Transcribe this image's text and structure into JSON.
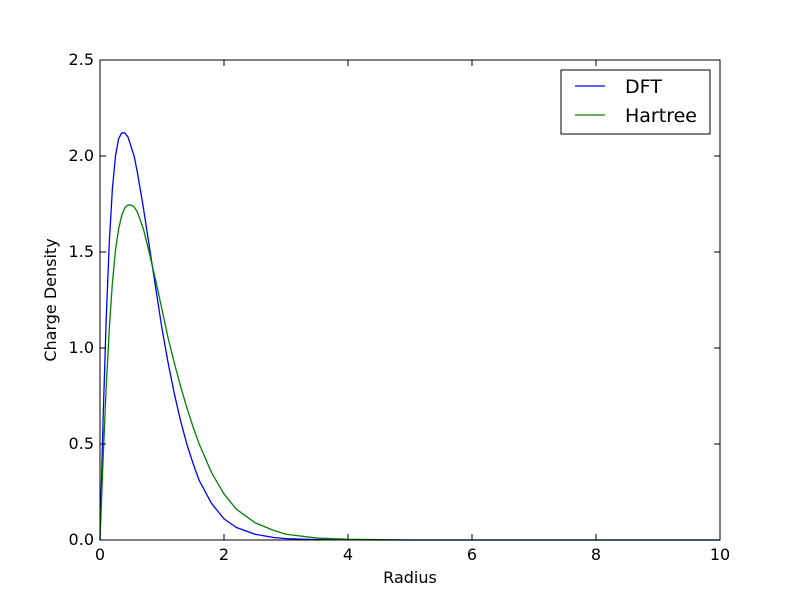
{
  "chart_data": {
    "type": "line",
    "title": "",
    "xlabel": "Radius",
    "ylabel": "Charge Density",
    "xlim": [
      0,
      10
    ],
    "ylim": [
      0,
      2.5
    ],
    "xticks": [
      "0",
      "2",
      "4",
      "6",
      "8",
      "10"
    ],
    "yticks": [
      "0.0",
      "0.5",
      "1.0",
      "1.5",
      "2.0",
      "2.5"
    ],
    "grid": false,
    "legend_position": "upper-right",
    "series": [
      {
        "name": "DFT",
        "color": "#0000ff",
        "x": [
          0,
          0.05,
          0.1,
          0.15,
          0.2,
          0.25,
          0.3,
          0.35,
          0.4,
          0.45,
          0.5,
          0.55,
          0.6,
          0.7,
          0.8,
          0.9,
          1.0,
          1.1,
          1.2,
          1.3,
          1.4,
          1.5,
          1.6,
          1.8,
          2.0,
          2.2,
          2.5,
          2.8,
          3.0,
          3.5,
          4.0,
          5.0,
          6.0,
          7.0,
          8.0,
          9.0,
          10.0
        ],
        "y": [
          0,
          0.63,
          1.15,
          1.55,
          1.83,
          2.0,
          2.09,
          2.12,
          2.12,
          2.1,
          2.05,
          2.0,
          1.92,
          1.73,
          1.52,
          1.31,
          1.1,
          0.92,
          0.76,
          0.62,
          0.5,
          0.4,
          0.31,
          0.19,
          0.11,
          0.065,
          0.03,
          0.013,
          0.007,
          0.002,
          0.0005,
          0.0,
          0.0,
          0.0,
          0.0,
          0.0,
          0.0
        ]
      },
      {
        "name": "Hartree",
        "color": "#008000",
        "x": [
          0,
          0.05,
          0.1,
          0.15,
          0.2,
          0.25,
          0.3,
          0.35,
          0.4,
          0.45,
          0.5,
          0.55,
          0.6,
          0.7,
          0.8,
          0.9,
          1.0,
          1.1,
          1.2,
          1.3,
          1.4,
          1.5,
          1.6,
          1.8,
          2.0,
          2.2,
          2.5,
          2.8,
          3.0,
          3.5,
          4.0,
          5.0,
          6.0,
          7.0,
          8.0,
          9.0,
          10.0
        ],
        "y": [
          0,
          0.42,
          0.8,
          1.1,
          1.34,
          1.51,
          1.62,
          1.69,
          1.73,
          1.745,
          1.745,
          1.735,
          1.71,
          1.62,
          1.49,
          1.35,
          1.2,
          1.05,
          0.92,
          0.8,
          0.69,
          0.59,
          0.5,
          0.35,
          0.24,
          0.16,
          0.09,
          0.05,
          0.03,
          0.01,
          0.004,
          0.0,
          0.0,
          0.0,
          0.0,
          0.0,
          0.0
        ]
      }
    ]
  }
}
